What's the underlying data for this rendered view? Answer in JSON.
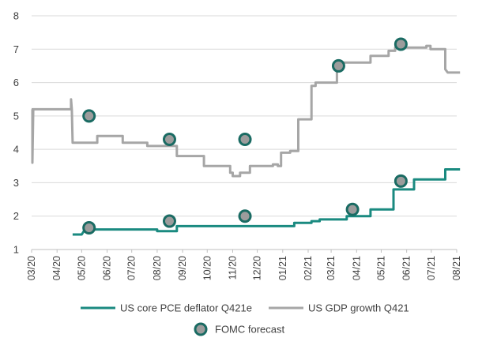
{
  "chart_data": {
    "type": "line",
    "title": "",
    "xlabel": "",
    "ylabel": "",
    "ylim": [
      1,
      8
    ],
    "yticks": [
      1,
      2,
      3,
      4,
      5,
      6,
      7,
      8
    ],
    "xlim": [
      "2020-03",
      "2021-08"
    ],
    "xticks": [
      "03/20",
      "04/20",
      "05/20",
      "06/20",
      "07/20",
      "08/20",
      "09/20",
      "10/20",
      "11/20",
      "12/20",
      "01/21",
      "02/21",
      "03/21",
      "04/21",
      "05/21",
      "06/21",
      "07/21",
      "08/21"
    ],
    "grid": "horizontal",
    "legend_position": "bottom",
    "colors": {
      "pce": "#1a8a80",
      "gdp": "#a6a6a6",
      "marker_fill": "#9c9c9c",
      "marker_ring": "#1a6b63",
      "grid": "#d9d9d9",
      "axis": "#bfbfbf"
    },
    "series": [
      {
        "name": "US core PCE deflator Q421e",
        "kind": "step-line",
        "points": [
          [
            "2020-04-20",
            1.45
          ],
          [
            "2020-05-01",
            1.45
          ],
          [
            "2020-05-05",
            1.6
          ],
          [
            "2020-08-01",
            1.6
          ],
          [
            "2020-08-01",
            1.55
          ],
          [
            "2020-08-25",
            1.55
          ],
          [
            "2020-08-25",
            1.7
          ],
          [
            "2021-01-15",
            1.7
          ],
          [
            "2021-01-15",
            1.8
          ],
          [
            "2021-02-05",
            1.8
          ],
          [
            "2021-02-05",
            1.85
          ],
          [
            "2021-02-15",
            1.85
          ],
          [
            "2021-02-15",
            1.9
          ],
          [
            "2021-03-20",
            1.9
          ],
          [
            "2021-03-20",
            2.0
          ],
          [
            "2021-04-18",
            2.0
          ],
          [
            "2021-04-18",
            2.2
          ],
          [
            "2021-05-16",
            2.2
          ],
          [
            "2021-05-16",
            2.8
          ],
          [
            "2021-06-10",
            2.8
          ],
          [
            "2021-06-10",
            3.1
          ],
          [
            "2021-07-18",
            3.1
          ],
          [
            "2021-07-18",
            3.4
          ],
          [
            "2021-08-05",
            3.4
          ]
        ]
      },
      {
        "name": "US GDP growth Q421",
        "kind": "step-line",
        "points": [
          [
            "2020-03-01",
            5.2
          ],
          [
            "2020-03-02",
            5.2
          ],
          [
            "2020-03-02",
            3.6
          ],
          [
            "2020-03-03",
            5.2
          ],
          [
            "2020-04-18",
            5.2
          ],
          [
            "2020-04-18",
            5.5
          ],
          [
            "2020-04-19",
            5.2
          ],
          [
            "2020-04-20",
            4.2
          ],
          [
            "2020-05-20",
            4.2
          ],
          [
            "2020-05-20",
            4.4
          ],
          [
            "2020-06-20",
            4.4
          ],
          [
            "2020-06-20",
            4.2
          ],
          [
            "2020-07-20",
            4.2
          ],
          [
            "2020-07-20",
            4.1
          ],
          [
            "2020-08-25",
            4.1
          ],
          [
            "2020-08-25",
            3.8
          ],
          [
            "2020-08-28",
            3.8
          ],
          [
            "2020-09-08",
            3.8
          ],
          [
            "2020-09-08",
            3.8
          ],
          [
            "2020-09-27",
            3.8
          ],
          [
            "2020-09-27",
            3.5
          ],
          [
            "2020-10-29",
            3.5
          ],
          [
            "2020-10-29",
            3.3
          ],
          [
            "2020-11-01",
            3.3
          ],
          [
            "2020-11-01",
            3.2
          ],
          [
            "2020-11-10",
            3.2
          ],
          [
            "2020-11-10",
            3.3
          ],
          [
            "2020-11-22",
            3.3
          ],
          [
            "2020-11-22",
            3.5
          ],
          [
            "2020-12-20",
            3.5
          ],
          [
            "2020-12-20",
            3.55
          ],
          [
            "2020-12-26",
            3.55
          ],
          [
            "2020-12-26",
            3.5
          ],
          [
            "2020-12-30",
            3.5
          ],
          [
            "2020-12-30",
            3.9
          ],
          [
            "2021-01-10",
            3.9
          ],
          [
            "2021-01-10",
            3.95
          ],
          [
            "2021-01-20",
            3.95
          ],
          [
            "2021-01-20",
            4.9
          ],
          [
            "2021-02-05",
            4.9
          ],
          [
            "2021-02-05",
            5.9
          ],
          [
            "2021-02-10",
            5.9
          ],
          [
            "2021-02-10",
            6.0
          ],
          [
            "2021-03-08",
            6.0
          ],
          [
            "2021-03-08",
            6.5
          ],
          [
            "2021-03-15",
            6.5
          ],
          [
            "2021-03-15",
            6.6
          ],
          [
            "2021-04-18",
            6.6
          ],
          [
            "2021-04-18",
            6.8
          ],
          [
            "2021-05-10",
            6.8
          ],
          [
            "2021-05-10",
            6.95
          ],
          [
            "2021-05-18",
            6.95
          ],
          [
            "2021-05-18",
            7.05
          ],
          [
            "2021-06-25",
            7.05
          ],
          [
            "2021-06-25",
            7.1
          ],
          [
            "2021-06-30",
            7.1
          ],
          [
            "2021-06-30",
            7.0
          ],
          [
            "2021-07-18",
            7.0
          ],
          [
            "2021-07-18",
            6.4
          ],
          [
            "2021-07-21",
            6.3
          ],
          [
            "2021-08-05",
            6.3
          ]
        ]
      },
      {
        "name": "FOMC forecast",
        "kind": "markers",
        "points": [
          [
            "2020-05-10",
            1.65
          ],
          [
            "2020-05-10",
            5.0
          ],
          [
            "2020-08-16",
            1.85
          ],
          [
            "2020-08-16",
            4.3
          ],
          [
            "2020-11-16",
            2.0
          ],
          [
            "2020-11-16",
            4.3
          ],
          [
            "2021-03-27",
            2.2
          ],
          [
            "2021-03-10",
            6.5
          ],
          [
            "2021-05-25",
            3.05
          ],
          [
            "2021-05-25",
            7.15
          ]
        ]
      }
    ],
    "legend": [
      {
        "label": "US core PCE deflator Q421e",
        "symbol": "line",
        "color_key": "pce"
      },
      {
        "label": "US GDP growth Q421",
        "symbol": "line",
        "color_key": "gdp"
      },
      {
        "label": "FOMC forecast",
        "symbol": "marker",
        "color_key": "marker_fill"
      }
    ]
  }
}
